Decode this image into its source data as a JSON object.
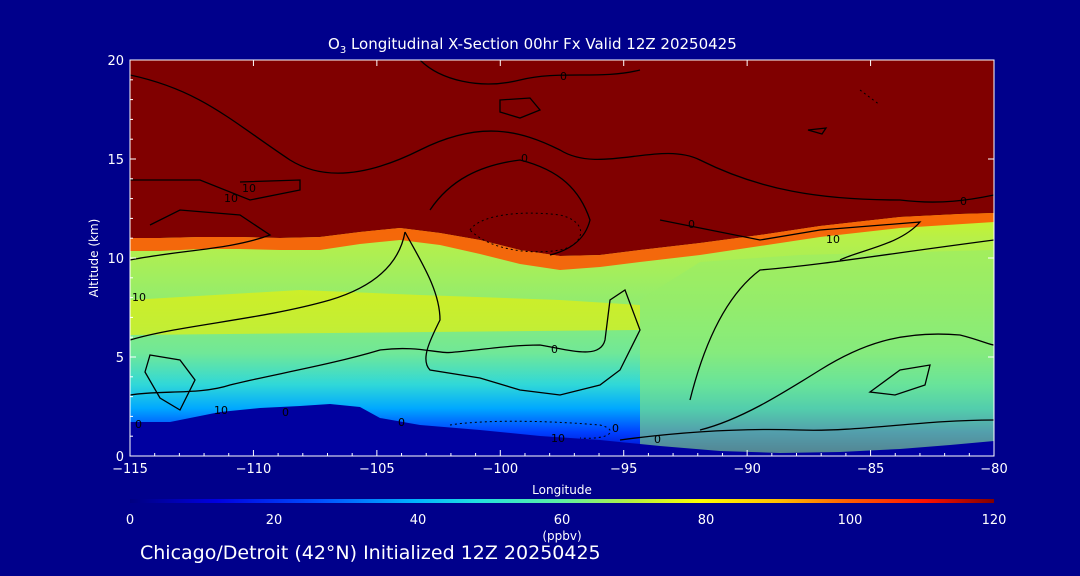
{
  "chart_data": {
    "type": "heatmap",
    "title_prefix": "O",
    "title_sub": "3",
    "title_rest": " Longitudinal X-Section 00hr  Fx Valid 12Z 20250425",
    "xlabel": "Longitude",
    "ylabel": "Altitude (km)",
    "xlim": [
      -115,
      -80
    ],
    "ylim": [
      0,
      20
    ],
    "xticks": [
      "-115",
      "-110",
      "-105",
      "-100",
      "-95",
      "-90",
      "-85",
      "-80"
    ],
    "yticks": [
      "0",
      "5",
      "10",
      "15",
      "20"
    ],
    "colorbar": {
      "range": [
        0,
        120
      ],
      "ticks": [
        "0",
        "20",
        "40",
        "60",
        "80",
        "100",
        "120"
      ],
      "unit": "(ppbv)"
    },
    "contour_labels": [
      "0",
      "0",
      "0",
      "0",
      "0",
      "0",
      "0",
      "0",
      "0",
      "0",
      "10",
      "10",
      "10",
      "10",
      "10",
      "10"
    ],
    "fields": {
      "tropopause_km_by_lon": [
        [
          -115,
          10.5
        ],
        [
          -110,
          10.6
        ],
        [
          -105,
          11.0
        ],
        [
          -100,
          10.4
        ],
        [
          -95,
          10.2
        ],
        [
          -90,
          10.7
        ],
        [
          -85,
          11.6
        ],
        [
          -80,
          12.0
        ]
      ],
      "terrain_km_by_lon": [
        [
          -115,
          1.6
        ],
        [
          -110,
          2.0
        ],
        [
          -106,
          2.4
        ],
        [
          -104,
          1.3
        ],
        [
          -100,
          1.0
        ],
        [
          -95,
          0.5
        ],
        [
          -90,
          0.2
        ],
        [
          -85,
          0.25
        ],
        [
          -80,
          0.6
        ]
      ]
    },
    "colors": {
      "stratosphere": "#800000",
      "background": "#00008b"
    }
  },
  "footer": "Chicago/Detroit (42°N) Initialized 12Z 20250425"
}
